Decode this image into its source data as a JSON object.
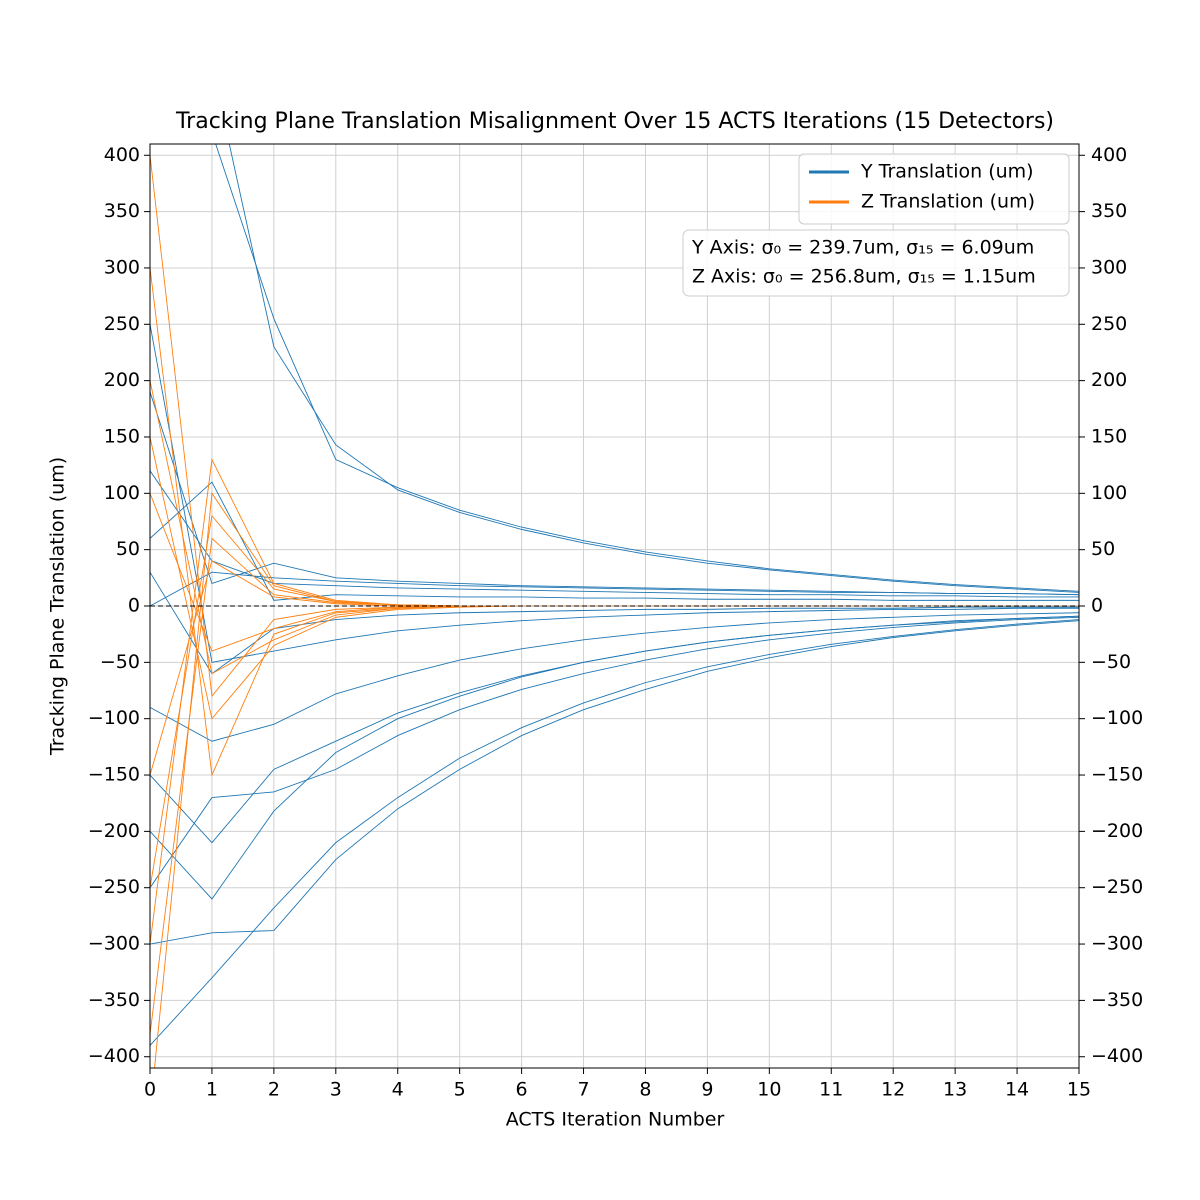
{
  "chart_data": {
    "type": "line",
    "title": "Tracking Plane Translation Misalignment Over 15 ACTS Iterations (15 Detectors)",
    "x_label": "ACTS Iteration Number",
    "y_label": "Tracking Plane Translation (um)",
    "annotation": [
      "Y Axis: σ₀ = 239.7um, σ₁₅ = 6.09um",
      "Z Axis: σ₀ = 256.8um, σ₁₅ = 1.15um"
    ],
    "x": [
      0,
      1,
      2,
      3,
      4,
      5,
      6,
      7,
      8,
      9,
      10,
      11,
      12,
      13,
      14,
      15
    ],
    "xlim": [
      0,
      15
    ],
    "xticks": [
      0,
      1,
      2,
      3,
      4,
      5,
      6,
      7,
      8,
      9,
      10,
      11,
      12,
      13,
      14,
      15
    ],
    "ylim": [
      -410,
      410
    ],
    "yticks": [
      {
        "value": -400,
        "label": "−400"
      },
      {
        "value": -350,
        "label": "−350"
      },
      {
        "value": -300,
        "label": "−300"
      },
      {
        "value": -250,
        "label": "−250"
      },
      {
        "value": -200,
        "label": "−200"
      },
      {
        "value": -150,
        "label": "−150"
      },
      {
        "value": -100,
        "label": "−100"
      },
      {
        "value": -50,
        "label": "−50"
      },
      0,
      50,
      100,
      150,
      200,
      250,
      300,
      350,
      400
    ],
    "reference_line": 0,
    "grid": true,
    "legend": "upper right",
    "series": [
      {
        "name": "Y Translation (um)",
        "color": "#1f77b4",
        "tracks": [
          [
            450,
            420,
            255,
            130,
            105,
            85,
            70,
            58,
            48,
            40,
            33,
            28,
            23,
            19,
            16,
            13
          ],
          [
            500,
            480,
            230,
            143,
            103,
            83,
            68,
            56,
            46,
            38,
            32,
            27,
            22,
            18,
            15,
            12
          ],
          [
            190,
            20,
            38,
            25,
            22,
            20,
            18,
            17,
            16,
            15,
            14,
            13,
            12,
            11,
            11,
            10
          ],
          [
            -300,
            -290,
            -288,
            -225,
            -180,
            -145,
            -115,
            -92,
            -74,
            -58,
            -46,
            -36,
            -28,
            -22,
            -17,
            -13
          ],
          [
            -390,
            -330,
            -268,
            -210,
            -170,
            -135,
            -108,
            -86,
            -68,
            -54,
            -43,
            -34,
            -27,
            -21,
            -16,
            -12
          ],
          [
            -150,
            -210,
            -145,
            -120,
            -95,
            -77,
            -62,
            -50,
            -40,
            -32,
            -26,
            -21,
            -17,
            -13,
            -11,
            -9
          ],
          [
            -90,
            -120,
            -105,
            -78,
            -62,
            -48,
            -38,
            -30,
            -24,
            -19,
            -15,
            -12,
            -10,
            -8,
            -7,
            -6
          ],
          [
            60,
            110,
            5,
            10,
            9,
            8,
            8,
            7,
            7,
            6,
            6,
            6,
            5,
            5,
            5,
            5
          ],
          [
            -200,
            -260,
            -182,
            -130,
            -100,
            -80,
            -63,
            -50,
            -40,
            -32,
            -26,
            -21,
            -17,
            -14,
            -11,
            -9
          ],
          [
            30,
            -60,
            -20,
            -12,
            -8,
            -6,
            -5,
            -4,
            -3,
            -3,
            -2,
            -2,
            -2,
            -1,
            -1,
            -1
          ],
          [
            120,
            40,
            20,
            18,
            16,
            15,
            14,
            13,
            12,
            11,
            10,
            10,
            9,
            9,
            8,
            8
          ],
          [
            -250,
            -170,
            -165,
            -145,
            -115,
            -92,
            -74,
            -60,
            -48,
            -38,
            -30,
            -24,
            -19,
            -15,
            -12,
            -10
          ],
          [
            250,
            -50,
            -40,
            -30,
            -22,
            -17,
            -13,
            -10,
            -8,
            -6,
            -5,
            -4,
            -3,
            -3,
            -2,
            -2
          ],
          [
            0,
            30,
            25,
            22,
            20,
            18,
            17,
            16,
            15,
            14,
            13,
            12,
            12,
            11,
            11,
            10
          ]
        ]
      },
      {
        "name": "Z Translation (um)",
        "color": "#ff7f0e",
        "tracks": [
          [
            400,
            -80,
            -12,
            -3,
            -1,
            0,
            0,
            0,
            0,
            0,
            0,
            0,
            0,
            0,
            0,
            0
          ],
          [
            -380,
            60,
            10,
            3,
            1,
            0,
            0,
            0,
            0,
            0,
            0,
            0,
            0,
            0,
            0,
            0
          ],
          [
            300,
            -150,
            -25,
            -6,
            -2,
            0,
            0,
            0,
            0,
            0,
            0,
            0,
            0,
            0,
            0,
            0
          ],
          [
            -300,
            130,
            20,
            5,
            1,
            0,
            0,
            0,
            0,
            0,
            0,
            0,
            0,
            0,
            0,
            0
          ],
          [
            200,
            -60,
            -30,
            -8,
            -2,
            0,
            0,
            0,
            0,
            0,
            0,
            0,
            0,
            0,
            0,
            0
          ],
          [
            -250,
            80,
            15,
            4,
            1,
            0,
            0,
            0,
            0,
            0,
            0,
            0,
            0,
            0,
            0,
            0
          ],
          [
            150,
            -100,
            -35,
            -10,
            -3,
            -1,
            0,
            0,
            0,
            0,
            0,
            0,
            0,
            0,
            0,
            0
          ],
          [
            -150,
            40,
            8,
            2,
            0,
            0,
            0,
            0,
            0,
            0,
            0,
            0,
            0,
            0,
            0,
            0
          ],
          [
            100,
            -40,
            -20,
            -5,
            -1,
            0,
            0,
            0,
            0,
            0,
            0,
            0,
            0,
            0,
            0,
            0
          ],
          [
            -450,
            100,
            18,
            4,
            1,
            0,
            0,
            0,
            0,
            0,
            0,
            0,
            0,
            0,
            0,
            0
          ]
        ]
      }
    ]
  }
}
